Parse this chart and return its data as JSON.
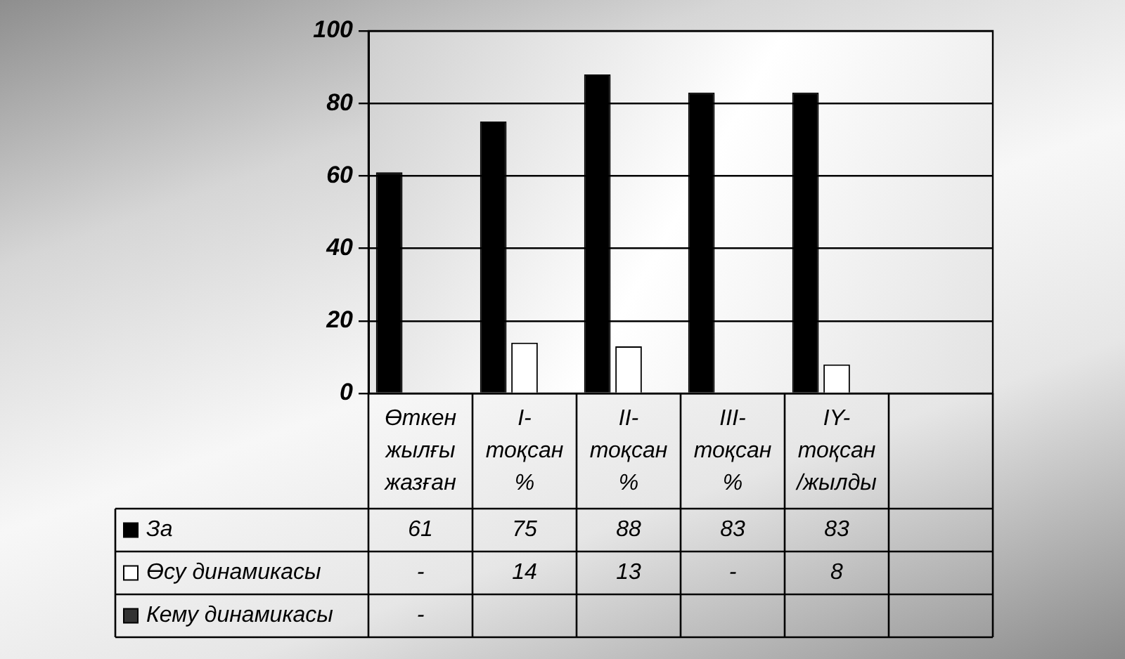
{
  "chart_data": {
    "type": "bar",
    "categories": [
      "Өткен жылғы жазған",
      "I-тоқсан %",
      "II-тоқсан %",
      "III-тоқсан %",
      "IY-тоқсан /жылды",
      null
    ],
    "series": [
      {
        "name": "За",
        "color": "#000000",
        "values": [
          61,
          75,
          88,
          83,
          83,
          null
        ],
        "value_labels": [
          "61",
          "75",
          "88",
          "83",
          "83",
          null
        ]
      },
      {
        "name": "Өсу динамикасы",
        "color": "#ffffff",
        "values": [
          null,
          14,
          13,
          null,
          8,
          null
        ],
        "value_labels": [
          "-",
          "14",
          "13",
          "-",
          "8",
          null
        ]
      },
      {
        "name": "Кему динамикасы",
        "color": "#333333",
        "values": [
          null,
          null,
          null,
          null,
          null,
          null
        ],
        "value_labels": [
          "-",
          null,
          null,
          null,
          null,
          null
        ]
      }
    ],
    "ylim": [
      0,
      100
    ],
    "yticks": [
      0,
      20,
      40,
      60,
      80,
      100
    ],
    "grid": "y",
    "legend": "bottom"
  }
}
